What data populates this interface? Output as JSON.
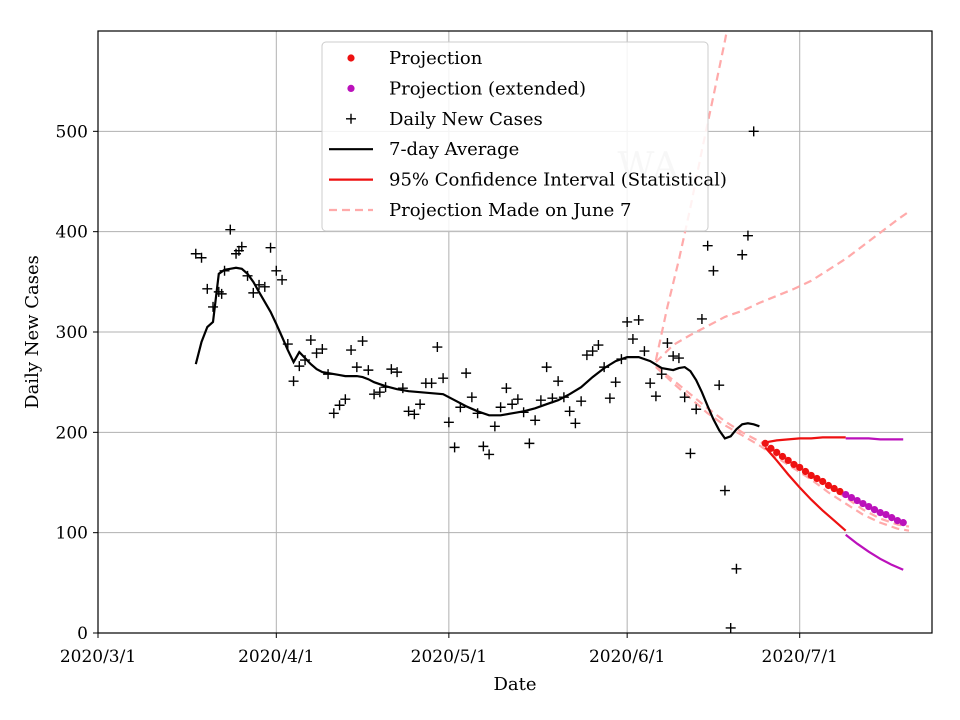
{
  "chart_data": {
    "type": "line",
    "region_label": "WA",
    "xlabel": "Date",
    "ylabel": "Daily New Cases",
    "x_start": "2020-03-01",
    "xlim_days": [
      0,
      145
    ],
    "ylim": [
      0,
      600
    ],
    "grid": true,
    "legend_location": "top-center",
    "x_ticks": [
      {
        "day": 0,
        "label": "2020/3/1"
      },
      {
        "day": 31,
        "label": "2020/4/1"
      },
      {
        "day": 61,
        "label": "2020/5/1"
      },
      {
        "day": 92,
        "label": "2020/6/1"
      },
      {
        "day": 122,
        "label": "2020/7/1"
      }
    ],
    "y_ticks": [
      0,
      100,
      200,
      300,
      400,
      500
    ],
    "colors": {
      "projection": "#ee1111",
      "projection_extended": "#bb11bb",
      "daily": "#000000",
      "avg": "#000000",
      "ci": "#ee1111",
      "ci_extended": "#bb11bb",
      "june7": "#ffaaaa",
      "grid": "#b0b0b0"
    },
    "legend": [
      {
        "key": "projection",
        "label": "Projection"
      },
      {
        "key": "projection_extended",
        "label": "Projection (extended)"
      },
      {
        "key": "daily",
        "label": "Daily New Cases"
      },
      {
        "key": "avg",
        "label": "7-day Average"
      },
      {
        "key": "ci",
        "label": "95% Confidence Interval (Statistical)"
      },
      {
        "key": "june7",
        "label": "Projection Made on June 7"
      }
    ],
    "daily_new_cases": [
      [
        17,
        378
      ],
      [
        18,
        374
      ],
      [
        19,
        343
      ],
      [
        20,
        325
      ],
      [
        21,
        340
      ],
      [
        21.5,
        338
      ],
      [
        22,
        361
      ],
      [
        23,
        402
      ],
      [
        24,
        378
      ],
      [
        24.5,
        381
      ],
      [
        25,
        385
      ],
      [
        26,
        356
      ],
      [
        27,
        339
      ],
      [
        28,
        347
      ],
      [
        29,
        345
      ],
      [
        30,
        384
      ],
      [
        31,
        361
      ],
      [
        32,
        352
      ],
      [
        33,
        288
      ],
      [
        34,
        251
      ],
      [
        35,
        266
      ],
      [
        36,
        272
      ],
      [
        37,
        292
      ],
      [
        38,
        279
      ],
      [
        39,
        283
      ],
      [
        40,
        258
      ],
      [
        41,
        219
      ],
      [
        42,
        227
      ],
      [
        43,
        233
      ],
      [
        44,
        282
      ],
      [
        45,
        265
      ],
      [
        46,
        291
      ],
      [
        47,
        262
      ],
      [
        48,
        238
      ],
      [
        49,
        240
      ],
      [
        50,
        245
      ],
      [
        51,
        263
      ],
      [
        52,
        260
      ],
      [
        53,
        244
      ],
      [
        54,
        221
      ],
      [
        55,
        218
      ],
      [
        56,
        228
      ],
      [
        57,
        249
      ],
      [
        58,
        249
      ],
      [
        59,
        285
      ],
      [
        60,
        254
      ],
      [
        61,
        210
      ],
      [
        62,
        185
      ],
      [
        63,
        225
      ],
      [
        64,
        259
      ],
      [
        65,
        235
      ],
      [
        66,
        219
      ],
      [
        67,
        186
      ],
      [
        68,
        178
      ],
      [
        69,
        206
      ],
      [
        70,
        225
      ],
      [
        71,
        244
      ],
      [
        72,
        228
      ],
      [
        73,
        233
      ],
      [
        74,
        220
      ],
      [
        75,
        189
      ],
      [
        76,
        212
      ],
      [
        77,
        232
      ],
      [
        78,
        265
      ],
      [
        79,
        234
      ],
      [
        80,
        251
      ],
      [
        81,
        235
      ],
      [
        82,
        221
      ],
      [
        83,
        209
      ],
      [
        84,
        231
      ],
      [
        85,
        277
      ],
      [
        86,
        281
      ],
      [
        87,
        287
      ],
      [
        88,
        265
      ],
      [
        89,
        234
      ],
      [
        90,
        250
      ],
      [
        91,
        273
      ],
      [
        92,
        310
      ],
      [
        93,
        293
      ],
      [
        94,
        312
      ],
      [
        95,
        281
      ],
      [
        96,
        249
      ],
      [
        97,
        236
      ],
      [
        98,
        258
      ],
      [
        99,
        289
      ],
      [
        100,
        276
      ],
      [
        101,
        274
      ],
      [
        102,
        235
      ],
      [
        103,
        179
      ],
      [
        104,
        223
      ],
      [
        105,
        313
      ],
      [
        106,
        386
      ],
      [
        107,
        361
      ],
      [
        108,
        247
      ],
      [
        109,
        142
      ],
      [
        110,
        5
      ],
      [
        111,
        64
      ],
      [
        112,
        377
      ],
      [
        113,
        396
      ],
      [
        114,
        500
      ]
    ],
    "seven_day_average": [
      [
        17,
        268
      ],
      [
        18,
        290
      ],
      [
        19,
        305
      ],
      [
        20,
        310
      ],
      [
        21,
        358
      ],
      [
        22,
        362
      ],
      [
        23,
        363
      ],
      [
        24,
        364
      ],
      [
        25,
        363
      ],
      [
        26,
        358
      ],
      [
        27,
        350
      ],
      [
        28,
        340
      ],
      [
        29,
        330
      ],
      [
        30,
        320
      ],
      [
        31,
        308
      ],
      [
        32,
        295
      ],
      [
        33,
        282
      ],
      [
        34,
        270
      ],
      [
        35,
        280
      ],
      [
        36,
        274
      ],
      [
        37,
        268
      ],
      [
        38,
        263
      ],
      [
        39,
        260
      ],
      [
        40,
        259
      ],
      [
        41,
        258
      ],
      [
        42,
        257
      ],
      [
        43,
        256
      ],
      [
        44,
        256
      ],
      [
        45,
        256
      ],
      [
        46,
        255
      ],
      [
        47,
        253
      ],
      [
        48,
        250
      ],
      [
        50,
        246
      ],
      [
        52,
        243
      ],
      [
        54,
        241
      ],
      [
        56,
        240
      ],
      [
        58,
        239
      ],
      [
        60,
        238
      ],
      [
        62,
        232
      ],
      [
        64,
        226
      ],
      [
        66,
        221
      ],
      [
        68,
        217
      ],
      [
        70,
        217
      ],
      [
        72,
        219
      ],
      [
        74,
        221
      ],
      [
        76,
        224
      ],
      [
        78,
        228
      ],
      [
        80,
        232
      ],
      [
        82,
        238
      ],
      [
        84,
        245
      ],
      [
        86,
        255
      ],
      [
        88,
        264
      ],
      [
        90,
        271
      ],
      [
        92,
        275
      ],
      [
        94,
        275
      ],
      [
        96,
        271
      ],
      [
        98,
        264
      ],
      [
        100,
        262
      ],
      [
        101,
        264
      ],
      [
        102,
        265
      ],
      [
        103,
        261
      ],
      [
        104,
        252
      ],
      [
        105,
        240
      ],
      [
        106,
        226
      ],
      [
        107,
        213
      ],
      [
        108,
        202
      ],
      [
        109,
        194
      ],
      [
        110,
        196
      ],
      [
        111,
        203
      ],
      [
        112,
        208
      ],
      [
        113,
        209
      ],
      [
        114,
        208
      ],
      [
        115,
        206
      ]
    ],
    "projection": [
      [
        116,
        189
      ],
      [
        117,
        184
      ],
      [
        118,
        180
      ],
      [
        119,
        176
      ],
      [
        120,
        172
      ],
      [
        121,
        168
      ],
      [
        122,
        165
      ],
      [
        123,
        161
      ],
      [
        124,
        157
      ],
      [
        125,
        154
      ],
      [
        126,
        151
      ],
      [
        127,
        147
      ],
      [
        128,
        144
      ],
      [
        129,
        141
      ]
    ],
    "projection_extended": [
      [
        130,
        138
      ],
      [
        131,
        135
      ],
      [
        132,
        132
      ],
      [
        133,
        129
      ],
      [
        134,
        126
      ],
      [
        135,
        123
      ],
      [
        136,
        120
      ],
      [
        137,
        118
      ],
      [
        138,
        115
      ],
      [
        139,
        112
      ],
      [
        140,
        110
      ]
    ],
    "ci_upper": [
      [
        116,
        190
      ],
      [
        118,
        192
      ],
      [
        120,
        193
      ],
      [
        122,
        194
      ],
      [
        124,
        194
      ],
      [
        126,
        195
      ],
      [
        128,
        195
      ],
      [
        130,
        195
      ]
    ],
    "ci_lower": [
      [
        116,
        185
      ],
      [
        118,
        172
      ],
      [
        120,
        158
      ],
      [
        122,
        145
      ],
      [
        124,
        133
      ],
      [
        126,
        122
      ],
      [
        128,
        112
      ],
      [
        130,
        102
      ]
    ],
    "ci_upper_extended": [
      [
        130,
        194
      ],
      [
        132,
        194
      ],
      [
        134,
        194
      ],
      [
        136,
        193
      ],
      [
        138,
        193
      ],
      [
        140,
        193
      ]
    ],
    "ci_lower_extended": [
      [
        130,
        98
      ],
      [
        132,
        89
      ],
      [
        134,
        81
      ],
      [
        136,
        74
      ],
      [
        138,
        68
      ],
      [
        140,
        63
      ]
    ],
    "june7_projection": {
      "upper": [
        [
          97,
          272
        ],
        [
          99,
          325
        ],
        [
          101,
          372
        ],
        [
          103,
          424
        ],
        [
          105,
          481
        ],
        [
          107,
          535
        ],
        [
          109,
          590
        ],
        [
          111,
          650
        ]
      ],
      "mid_upper": [
        [
          97,
          270
        ],
        [
          100,
          287
        ],
        [
          103,
          297
        ],
        [
          106,
          306
        ],
        [
          109,
          315
        ],
        [
          112,
          321
        ],
        [
          115,
          329
        ],
        [
          118,
          336
        ],
        [
          121,
          343
        ],
        [
          124,
          351
        ],
        [
          127,
          362
        ],
        [
          130,
          373
        ],
        [
          133,
          386
        ],
        [
          136,
          399
        ],
        [
          139,
          412
        ],
        [
          141,
          420
        ]
      ],
      "mid_lower": [
        [
          97,
          266
        ],
        [
          100,
          252
        ],
        [
          103,
          238
        ],
        [
          106,
          224
        ],
        [
          109,
          211
        ],
        [
          112,
          200
        ],
        [
          115,
          191
        ],
        [
          118,
          181
        ],
        [
          121,
          170
        ],
        [
          124,
          159
        ],
        [
          127,
          146
        ],
        [
          130,
          135
        ],
        [
          133,
          123
        ],
        [
          136,
          114
        ],
        [
          139,
          108
        ],
        [
          141,
          106
        ]
      ],
      "lower": [
        [
          97,
          265
        ],
        [
          100,
          249
        ],
        [
          103,
          234
        ],
        [
          106,
          219
        ],
        [
          109,
          207
        ],
        [
          112,
          197
        ],
        [
          115,
          187
        ],
        [
          118,
          175
        ],
        [
          121,
          164
        ],
        [
          124,
          153
        ],
        [
          127,
          140
        ],
        [
          130,
          129
        ],
        [
          133,
          118
        ],
        [
          136,
          110
        ],
        [
          139,
          104
        ],
        [
          141,
          102
        ]
      ]
    }
  }
}
